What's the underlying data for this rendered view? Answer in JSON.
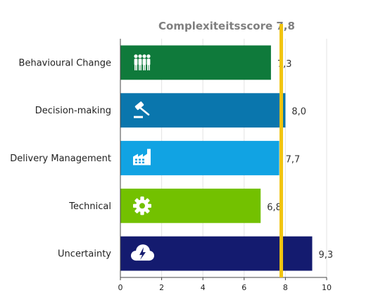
{
  "chart_data": {
    "type": "bar",
    "orientation": "horizontal",
    "title": "Complexiteitsscore 7,8",
    "xlabel": "",
    "ylabel": "",
    "xlim": [
      0,
      10
    ],
    "x_ticks": [
      0,
      2,
      4,
      6,
      8,
      10
    ],
    "grid": "vertical",
    "categories": [
      "Behavioural Change",
      "Decision-making",
      "Delivery Management",
      "Technical",
      "Uncertainty"
    ],
    "values": [
      7.3,
      8.0,
      7.7,
      6.8,
      9.3
    ],
    "value_labels": [
      "7,3",
      "8,0",
      "7,7",
      "6,8",
      "9,3"
    ],
    "bar_colors": [
      "#0f7a3b",
      "#0a76ad",
      "#11a3e3",
      "#73c100",
      "#141b6f"
    ],
    "bar_icons": [
      "people-icon",
      "gavel-icon",
      "factory-icon",
      "gear-icon",
      "cloud-lightning-icon"
    ],
    "reference_line": {
      "value": 7.8,
      "color": "#f1c40f"
    }
  }
}
